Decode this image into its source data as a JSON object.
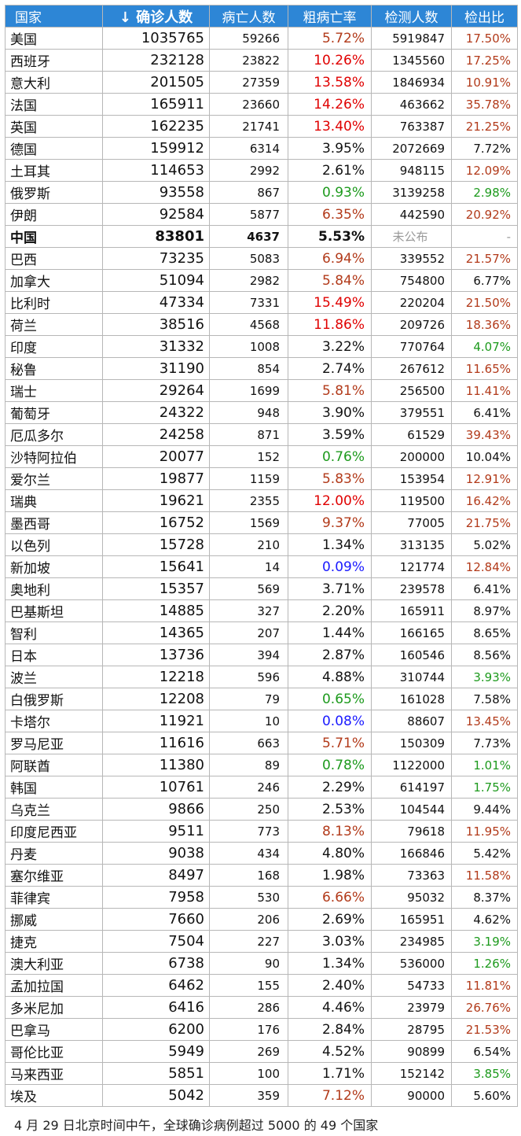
{
  "headers": {
    "country": "国家",
    "confirmed": "↓ 确诊人数",
    "deaths": "病亡人数",
    "cfr": "粗病亡率",
    "tests": "检测人数",
    "ratio": "检出比"
  },
  "colors": {
    "header_bg": "#2d86d6",
    "black": "#111111",
    "dark_red": "#b23a1a",
    "red": "#e00000",
    "green": "#1d9a1d",
    "blue": "#1a1aff",
    "gray": "#999999"
  },
  "rows": [
    {
      "country": "美国",
      "confirmed": "1035765",
      "deaths": "59266",
      "cfr": "5.72%",
      "cfr_color": "dark_red",
      "tests": "5919847",
      "ratio": "17.50%",
      "ratio_color": "dark_red"
    },
    {
      "country": "西班牙",
      "confirmed": "232128",
      "deaths": "23822",
      "cfr": "10.26%",
      "cfr_color": "red",
      "tests": "1345560",
      "ratio": "17.25%",
      "ratio_color": "dark_red"
    },
    {
      "country": "意大利",
      "confirmed": "201505",
      "deaths": "27359",
      "cfr": "13.58%",
      "cfr_color": "red",
      "tests": "1846934",
      "ratio": "10.91%",
      "ratio_color": "dark_red"
    },
    {
      "country": "法国",
      "confirmed": "165911",
      "deaths": "23660",
      "cfr": "14.26%",
      "cfr_color": "red",
      "tests": "463662",
      "ratio": "35.78%",
      "ratio_color": "dark_red"
    },
    {
      "country": "英国",
      "confirmed": "162235",
      "deaths": "21741",
      "cfr": "13.40%",
      "cfr_color": "red",
      "tests": "763387",
      "ratio": "21.25%",
      "ratio_color": "dark_red"
    },
    {
      "country": "德国",
      "confirmed": "159912",
      "deaths": "6314",
      "cfr": "3.95%",
      "cfr_color": "black",
      "tests": "2072669",
      "ratio": "7.72%",
      "ratio_color": "black"
    },
    {
      "country": "土耳其",
      "confirmed": "114653",
      "deaths": "2992",
      "cfr": "2.61%",
      "cfr_color": "black",
      "tests": "948115",
      "ratio": "12.09%",
      "ratio_color": "dark_red"
    },
    {
      "country": "俄罗斯",
      "confirmed": "93558",
      "deaths": "867",
      "cfr": "0.93%",
      "cfr_color": "green",
      "tests": "3139258",
      "ratio": "2.98%",
      "ratio_color": "green"
    },
    {
      "country": "伊朗",
      "confirmed": "92584",
      "deaths": "5877",
      "cfr": "6.35%",
      "cfr_color": "dark_red",
      "tests": "442590",
      "ratio": "20.92%",
      "ratio_color": "dark_red"
    },
    {
      "country": "中国",
      "confirmed": "83801",
      "deaths": "4637",
      "cfr": "5.53%",
      "cfr_color": "black",
      "tests": "未公布",
      "tests_color": "gray",
      "ratio": "-",
      "ratio_color": "gray",
      "bold": true
    },
    {
      "country": "巴西",
      "confirmed": "73235",
      "deaths": "5083",
      "cfr": "6.94%",
      "cfr_color": "dark_red",
      "tests": "339552",
      "ratio": "21.57%",
      "ratio_color": "dark_red"
    },
    {
      "country": "加拿大",
      "confirmed": "51094",
      "deaths": "2982",
      "cfr": "5.84%",
      "cfr_color": "dark_red",
      "tests": "754800",
      "ratio": "6.77%",
      "ratio_color": "black"
    },
    {
      "country": "比利时",
      "confirmed": "47334",
      "deaths": "7331",
      "cfr": "15.49%",
      "cfr_color": "red",
      "tests": "220204",
      "ratio": "21.50%",
      "ratio_color": "dark_red"
    },
    {
      "country": "荷兰",
      "confirmed": "38516",
      "deaths": "4568",
      "cfr": "11.86%",
      "cfr_color": "red",
      "tests": "209726",
      "ratio": "18.36%",
      "ratio_color": "dark_red"
    },
    {
      "country": "印度",
      "confirmed": "31332",
      "deaths": "1008",
      "cfr": "3.22%",
      "cfr_color": "black",
      "tests": "770764",
      "ratio": "4.07%",
      "ratio_color": "green"
    },
    {
      "country": "秘鲁",
      "confirmed": "31190",
      "deaths": "854",
      "cfr": "2.74%",
      "cfr_color": "black",
      "tests": "267612",
      "ratio": "11.65%",
      "ratio_color": "dark_red"
    },
    {
      "country": "瑞士",
      "confirmed": "29264",
      "deaths": "1699",
      "cfr": "5.81%",
      "cfr_color": "dark_red",
      "tests": "256500",
      "ratio": "11.41%",
      "ratio_color": "dark_red"
    },
    {
      "country": "葡萄牙",
      "confirmed": "24322",
      "deaths": "948",
      "cfr": "3.90%",
      "cfr_color": "black",
      "tests": "379551",
      "ratio": "6.41%",
      "ratio_color": "black"
    },
    {
      "country": "厄瓜多尔",
      "confirmed": "24258",
      "deaths": "871",
      "cfr": "3.59%",
      "cfr_color": "black",
      "tests": "61529",
      "ratio": "39.43%",
      "ratio_color": "dark_red"
    },
    {
      "country": "沙特阿拉伯",
      "confirmed": "20077",
      "deaths": "152",
      "cfr": "0.76%",
      "cfr_color": "green",
      "tests": "200000",
      "ratio": "10.04%",
      "ratio_color": "black"
    },
    {
      "country": "爱尔兰",
      "confirmed": "19877",
      "deaths": "1159",
      "cfr": "5.83%",
      "cfr_color": "dark_red",
      "tests": "153954",
      "ratio": "12.91%",
      "ratio_color": "dark_red"
    },
    {
      "country": "瑞典",
      "confirmed": "19621",
      "deaths": "2355",
      "cfr": "12.00%",
      "cfr_color": "red",
      "tests": "119500",
      "ratio": "16.42%",
      "ratio_color": "dark_red"
    },
    {
      "country": "墨西哥",
      "confirmed": "16752",
      "deaths": "1569",
      "cfr": "9.37%",
      "cfr_color": "dark_red",
      "tests": "77005",
      "ratio": "21.75%",
      "ratio_color": "dark_red"
    },
    {
      "country": "以色列",
      "confirmed": "15728",
      "deaths": "210",
      "cfr": "1.34%",
      "cfr_color": "black",
      "tests": "313135",
      "ratio": "5.02%",
      "ratio_color": "black"
    },
    {
      "country": "新加坡",
      "confirmed": "15641",
      "deaths": "14",
      "cfr": "0.09%",
      "cfr_color": "blue",
      "tests": "121774",
      "ratio": "12.84%",
      "ratio_color": "dark_red"
    },
    {
      "country": "奥地利",
      "confirmed": "15357",
      "deaths": "569",
      "cfr": "3.71%",
      "cfr_color": "black",
      "tests": "239578",
      "ratio": "6.41%",
      "ratio_color": "black"
    },
    {
      "country": "巴基斯坦",
      "confirmed": "14885",
      "deaths": "327",
      "cfr": "2.20%",
      "cfr_color": "black",
      "tests": "165911",
      "ratio": "8.97%",
      "ratio_color": "black"
    },
    {
      "country": "智利",
      "confirmed": "14365",
      "deaths": "207",
      "cfr": "1.44%",
      "cfr_color": "black",
      "tests": "166165",
      "ratio": "8.65%",
      "ratio_color": "black"
    },
    {
      "country": "日本",
      "confirmed": "13736",
      "deaths": "394",
      "cfr": "2.87%",
      "cfr_color": "black",
      "tests": "160546",
      "ratio": "8.56%",
      "ratio_color": "black"
    },
    {
      "country": "波兰",
      "confirmed": "12218",
      "deaths": "596",
      "cfr": "4.88%",
      "cfr_color": "black",
      "tests": "310744",
      "ratio": "3.93%",
      "ratio_color": "green"
    },
    {
      "country": "白俄罗斯",
      "confirmed": "12208",
      "deaths": "79",
      "cfr": "0.65%",
      "cfr_color": "green",
      "tests": "161028",
      "ratio": "7.58%",
      "ratio_color": "black"
    },
    {
      "country": "卡塔尔",
      "confirmed": "11921",
      "deaths": "10",
      "cfr": "0.08%",
      "cfr_color": "blue",
      "tests": "88607",
      "ratio": "13.45%",
      "ratio_color": "dark_red"
    },
    {
      "country": "罗马尼亚",
      "confirmed": "11616",
      "deaths": "663",
      "cfr": "5.71%",
      "cfr_color": "dark_red",
      "tests": "150309",
      "ratio": "7.73%",
      "ratio_color": "black"
    },
    {
      "country": "阿联酋",
      "confirmed": "11380",
      "deaths": "89",
      "cfr": "0.78%",
      "cfr_color": "green",
      "tests": "1122000",
      "ratio": "1.01%",
      "ratio_color": "green"
    },
    {
      "country": "韩国",
      "confirmed": "10761",
      "deaths": "246",
      "cfr": "2.29%",
      "cfr_color": "black",
      "tests": "614197",
      "ratio": "1.75%",
      "ratio_color": "green"
    },
    {
      "country": "乌克兰",
      "confirmed": "9866",
      "deaths": "250",
      "cfr": "2.53%",
      "cfr_color": "black",
      "tests": "104544",
      "ratio": "9.44%",
      "ratio_color": "black"
    },
    {
      "country": "印度尼西亚",
      "confirmed": "9511",
      "deaths": "773",
      "cfr": "8.13%",
      "cfr_color": "dark_red",
      "tests": "79618",
      "ratio": "11.95%",
      "ratio_color": "dark_red"
    },
    {
      "country": "丹麦",
      "confirmed": "9038",
      "deaths": "434",
      "cfr": "4.80%",
      "cfr_color": "black",
      "tests": "166846",
      "ratio": "5.42%",
      "ratio_color": "black"
    },
    {
      "country": "塞尔维亚",
      "confirmed": "8497",
      "deaths": "168",
      "cfr": "1.98%",
      "cfr_color": "black",
      "tests": "73363",
      "ratio": "11.58%",
      "ratio_color": "dark_red"
    },
    {
      "country": "菲律宾",
      "confirmed": "7958",
      "deaths": "530",
      "cfr": "6.66%",
      "cfr_color": "dark_red",
      "tests": "95032",
      "ratio": "8.37%",
      "ratio_color": "black"
    },
    {
      "country": "挪威",
      "confirmed": "7660",
      "deaths": "206",
      "cfr": "2.69%",
      "cfr_color": "black",
      "tests": "165951",
      "ratio": "4.62%",
      "ratio_color": "black"
    },
    {
      "country": "捷克",
      "confirmed": "7504",
      "deaths": "227",
      "cfr": "3.03%",
      "cfr_color": "black",
      "tests": "234985",
      "ratio": "3.19%",
      "ratio_color": "green"
    },
    {
      "country": "澳大利亚",
      "confirmed": "6738",
      "deaths": "90",
      "cfr": "1.34%",
      "cfr_color": "black",
      "tests": "536000",
      "ratio": "1.26%",
      "ratio_color": "green"
    },
    {
      "country": "孟加拉国",
      "confirmed": "6462",
      "deaths": "155",
      "cfr": "2.40%",
      "cfr_color": "black",
      "tests": "54733",
      "ratio": "11.81%",
      "ratio_color": "dark_red"
    },
    {
      "country": "多米尼加",
      "confirmed": "6416",
      "deaths": "286",
      "cfr": "4.46%",
      "cfr_color": "black",
      "tests": "23979",
      "ratio": "26.76%",
      "ratio_color": "dark_red"
    },
    {
      "country": "巴拿马",
      "confirmed": "6200",
      "deaths": "176",
      "cfr": "2.84%",
      "cfr_color": "black",
      "tests": "28795",
      "ratio": "21.53%",
      "ratio_color": "dark_red"
    },
    {
      "country": "哥伦比亚",
      "confirmed": "5949",
      "deaths": "269",
      "cfr": "4.52%",
      "cfr_color": "black",
      "tests": "90899",
      "ratio": "6.54%",
      "ratio_color": "black"
    },
    {
      "country": "马来西亚",
      "confirmed": "5851",
      "deaths": "100",
      "cfr": "1.71%",
      "cfr_color": "black",
      "tests": "152142",
      "ratio": "3.85%",
      "ratio_color": "green"
    },
    {
      "country": "埃及",
      "confirmed": "5042",
      "deaths": "359",
      "cfr": "7.12%",
      "cfr_color": "dark_red",
      "tests": "90000",
      "ratio": "5.60%",
      "ratio_color": "black"
    }
  ],
  "caption": "4 月 29 日北京时间中午，全球确诊病例超过 5000 的 49 个国家"
}
